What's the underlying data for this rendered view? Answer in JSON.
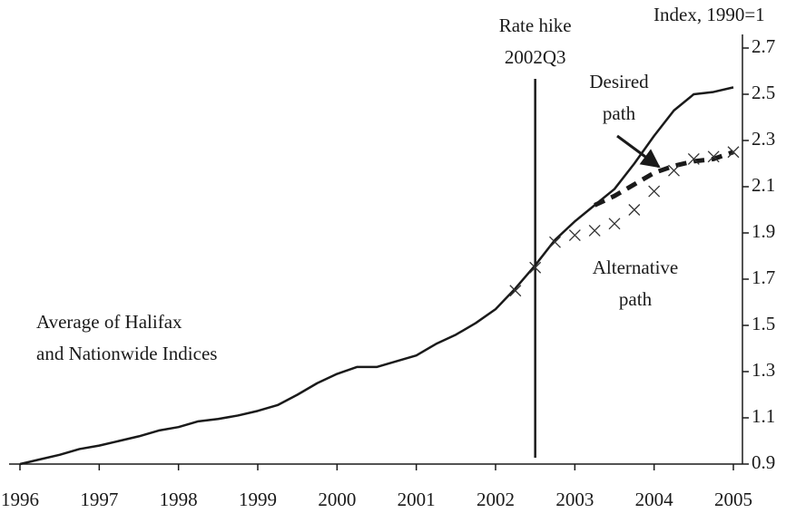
{
  "chart_data": {
    "type": "line",
    "y_label": "Index, 1990=1",
    "xlim": [
      1996,
      2005
    ],
    "xticks": [
      1996,
      1997,
      1998,
      1999,
      2000,
      2001,
      2002,
      2003,
      2004,
      2005
    ],
    "ylim": [
      0.9,
      2.7
    ],
    "yticks": [
      0.9,
      1.1,
      1.3,
      1.5,
      1.7,
      1.9,
      2.1,
      2.3,
      2.5,
      2.7
    ],
    "vline": {
      "x": 2002.5,
      "label": [
        "Rate hike",
        "2002Q3"
      ]
    },
    "series": [
      {
        "label": [
          "Average of Halifax",
          "and Nationwide Indices"
        ],
        "style": "solid",
        "color": "#1a1a1a",
        "x": [
          1996,
          1996.25,
          1996.5,
          1996.75,
          1997,
          1997.25,
          1997.5,
          1997.75,
          1998,
          1998.25,
          1998.5,
          1998.75,
          1999,
          1999.25,
          1999.5,
          1999.75,
          2000,
          2000.25,
          2000.5,
          2000.75,
          2001,
          2001.25,
          2001.5,
          2001.75,
          2002,
          2002.25,
          2002.5,
          2002.75,
          2003,
          2003.25,
          2003.5,
          2003.75,
          2004,
          2004.25,
          2004.5,
          2004.75,
          2005
        ],
        "values": [
          0.9,
          0.92,
          0.94,
          0.965,
          0.98,
          1.0,
          1.02,
          1.045,
          1.06,
          1.085,
          1.095,
          1.11,
          1.13,
          1.155,
          1.2,
          1.25,
          1.29,
          1.32,
          1.32,
          1.345,
          1.37,
          1.42,
          1.46,
          1.51,
          1.57,
          1.66,
          1.76,
          1.87,
          1.95,
          2.02,
          2.09,
          2.2,
          2.32,
          2.43,
          2.5,
          2.51,
          2.53
        ]
      },
      {
        "label": [
          "Desired",
          "path"
        ],
        "style": "dashed",
        "color": "#1a1a1a",
        "x": [
          2003.25,
          2003.5,
          2003.75,
          2004,
          2004.25,
          2004.5,
          2004.75,
          2005
        ],
        "values": [
          2.02,
          2.06,
          2.11,
          2.16,
          2.19,
          2.21,
          2.22,
          2.25
        ]
      },
      {
        "label": [
          "Alternative",
          "path"
        ],
        "style": "cross",
        "color": "#333333",
        "x": [
          2002.25,
          2002.5,
          2002.75,
          2003,
          2003.25,
          2003.5,
          2003.75,
          2004,
          2004.25,
          2004.5,
          2004.75,
          2005
        ],
        "values": [
          1.65,
          1.75,
          1.86,
          1.89,
          1.91,
          1.94,
          2.0,
          2.08,
          2.17,
          2.22,
          2.23,
          2.25
        ]
      }
    ]
  }
}
